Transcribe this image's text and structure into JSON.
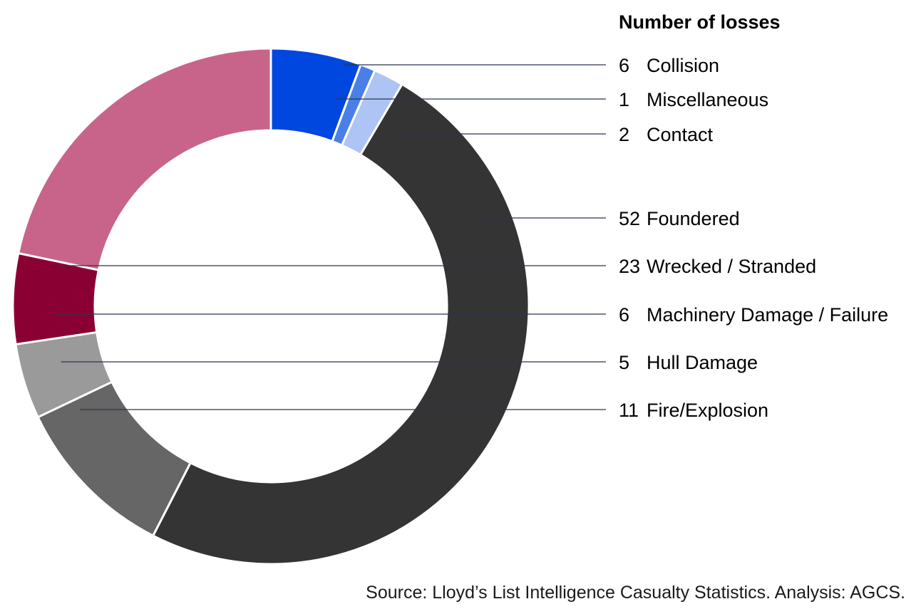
{
  "chart_data": {
    "type": "pie",
    "style": "donut",
    "title": "Number of losses",
    "categories": [
      "Collision",
      "Miscellaneous",
      "Contact",
      "Foundered",
      "Fire/Explosion",
      "Hull Damage",
      "Machinery Damage / Failure",
      "Wrecked / Stranded"
    ],
    "values": [
      6,
      1,
      2,
      52,
      11,
      5,
      6,
      23
    ],
    "colors": [
      "#0047e0",
      "#4a7fe8",
      "#aec4f4",
      "#343434",
      "#666666",
      "#9a9a9a",
      "#8b0033",
      "#c8648a"
    ],
    "legend": [
      {
        "count": "6",
        "label": "Collision"
      },
      {
        "count": "1",
        "label": "Miscellaneous"
      },
      {
        "count": "2",
        "label": "Contact"
      },
      {
        "count": "52",
        "label": "Foundered"
      },
      {
        "count": "23",
        "label": "Wrecked / Stranded"
      },
      {
        "count": "6",
        "label": "Machinery Damage / Failure"
      },
      {
        "count": "5",
        "label": "Hull Damage"
      },
      {
        "count": "11",
        "label": "Fire/Explosion"
      }
    ],
    "legend_position": "right",
    "source": "Source: Lloyd’s List Intelligence Casualty Statistics. Analysis: AGCS."
  }
}
